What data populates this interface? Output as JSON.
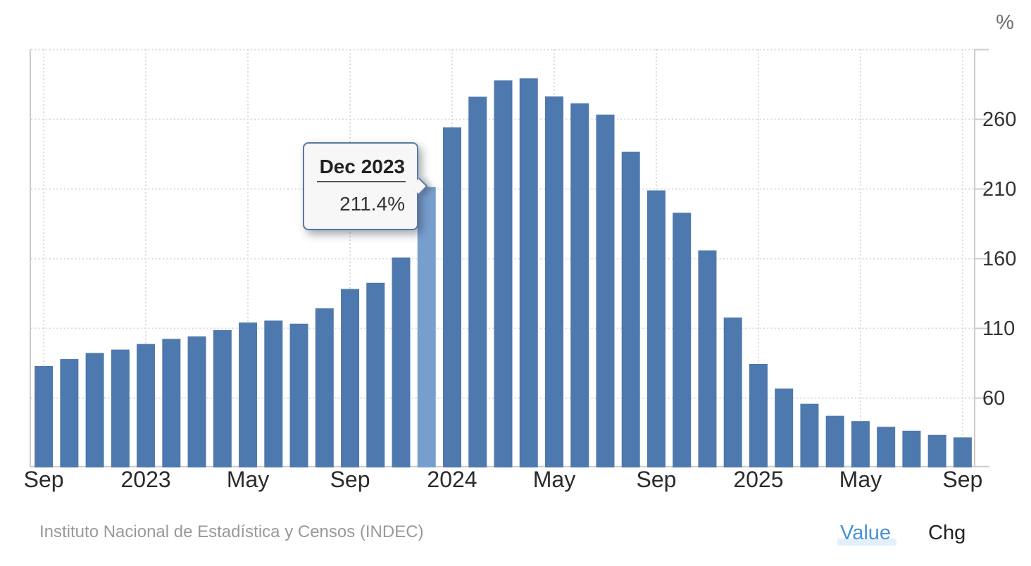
{
  "chart_data": {
    "type": "bar",
    "title": "",
    "unit": "%",
    "y_axis_title": "%",
    "categories": [
      "Sep 2022",
      "Oct 2022",
      "Nov 2022",
      "Dec 2022",
      "Jan 2023",
      "Feb 2023",
      "Mar 2023",
      "Apr 2023",
      "May 2023",
      "Jun 2023",
      "Jul 2023",
      "Aug 2023",
      "Sep 2023",
      "Oct 2023",
      "Nov 2023",
      "Dec 2023",
      "Jan 2024",
      "Feb 2024",
      "Mar 2024",
      "Apr 2024",
      "May 2024",
      "Jun 2024",
      "Jul 2024",
      "Aug 2024",
      "Sep 2024",
      "Oct 2024",
      "Nov 2024",
      "Dec 2024",
      "Jan 2025",
      "Feb 2025",
      "Mar 2025",
      "Apr 2025",
      "May 2025",
      "Jun 2025",
      "Jul 2025",
      "Aug 2025",
      "Sep 2025"
    ],
    "values": [
      83.0,
      88.0,
      92.4,
      94.8,
      98.8,
      102.5,
      104.3,
      108.8,
      114.2,
      115.6,
      113.4,
      124.4,
      138.3,
      142.7,
      160.9,
      211.4,
      254.2,
      276.2,
      287.9,
      289.4,
      276.4,
      271.5,
      263.4,
      236.7,
      209.0,
      193.0,
      166.0,
      117.8,
      84.5,
      66.9,
      55.9,
      47.3,
      43.5,
      39.4,
      36.6,
      33.6,
      31.8
    ],
    "highlight_index": 15,
    "x_tick_positions": [
      0,
      4,
      8,
      12,
      16,
      20,
      24,
      28,
      32,
      36
    ],
    "x_tick_labels": [
      "Sep",
      "2023",
      "May",
      "Sep",
      "2024",
      "May",
      "Sep",
      "2025",
      "May",
      "Sep"
    ],
    "y_ticks": [
      60,
      110,
      160,
      210,
      260
    ],
    "ylim": [
      10,
      310
    ],
    "grid": "dotted",
    "legend_position": "none",
    "colors": {
      "bar": "#4e79ae",
      "bar_highlight": "#789ecf",
      "grid_line": "#d9d9d9",
      "axis_line": "#cccccc",
      "x_label": "#2b2b2b",
      "y_label": "#333333",
      "y_axis_title": "#6e6e6e"
    }
  },
  "tooltip": {
    "title": "Dec 2023",
    "value": "211.4%"
  },
  "footer": {
    "source": "Instituto Nacional de Estadística y Censos (INDEC)",
    "value_label": "Value",
    "chg_label": "Chg"
  }
}
